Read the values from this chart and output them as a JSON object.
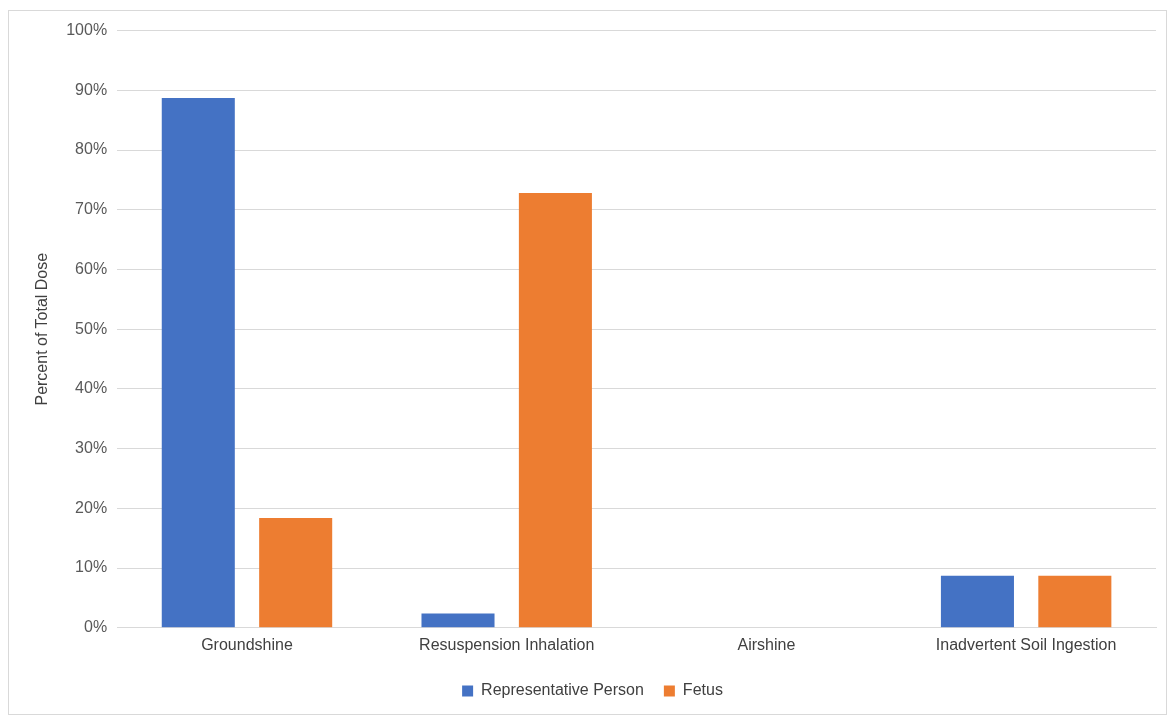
{
  "chart_data": {
    "type": "bar",
    "ylabel": "Percent of Total Dose",
    "categories": [
      "Groundshine",
      "Resuspension Inhalation",
      "Airshine",
      "Inadvertent Soil Ingestion"
    ],
    "series": [
      {
        "name": "Representative Person",
        "color": "#4472c4",
        "values": [
          88.7,
          2.4,
          0,
          8.7
        ]
      },
      {
        "name": "Fetus",
        "color": "#ed7d31",
        "values": [
          18.4,
          72.8,
          0,
          8.7
        ]
      }
    ],
    "ylim": [
      0,
      100
    ],
    "yticks": [
      {
        "value": 0,
        "label": "0%"
      },
      {
        "value": 10,
        "label": "10%"
      },
      {
        "value": 20,
        "label": "20%"
      },
      {
        "value": 30,
        "label": "30%"
      },
      {
        "value": 40,
        "label": "40%"
      },
      {
        "value": 50,
        "label": "50%"
      },
      {
        "value": 60,
        "label": "60%"
      },
      {
        "value": 70,
        "label": "70%"
      },
      {
        "value": 80,
        "label": "80%"
      },
      {
        "value": 90,
        "label": "90%"
      },
      {
        "value": 100,
        "label": "100%"
      }
    ],
    "grid": "y",
    "legend": "bottom"
  }
}
